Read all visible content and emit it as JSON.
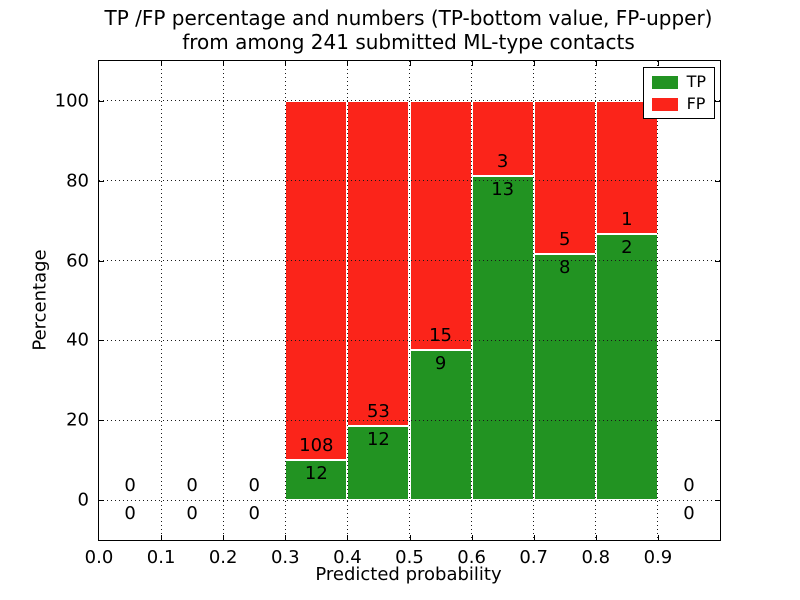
{
  "figure": {
    "title_line1": "TP /FP percentage and numbers (TP-bottom value, FP-upper)",
    "title_line2": "from among 241 submitted ML-type contacts"
  },
  "chart_data": {
    "type": "bar",
    "stacked": true,
    "title": "TP /FP percentage and numbers (TP-bottom value, FP-upper) from among 241 submitted ML-type contacts",
    "xlabel": "Predicted probability",
    "ylabel": "Percentage",
    "xlim": [
      0.0,
      1.0
    ],
    "ylim": [
      -10,
      110
    ],
    "grid": "dotted, drawn above bars",
    "total_contacts": 241,
    "xticks": {
      "values": [
        0.0,
        0.1,
        0.2,
        0.3,
        0.4,
        0.5,
        0.6,
        0.7,
        0.8,
        0.9
      ],
      "labels": [
        "0.0",
        "0.1",
        "0.2",
        "0.3",
        "0.4",
        "0.5",
        "0.6",
        "0.7",
        "0.8",
        "0.9"
      ]
    },
    "yticks": {
      "values": [
        0,
        20,
        40,
        60,
        80,
        100
      ],
      "labels": [
        "0",
        "20",
        "40",
        "60",
        "80",
        "100"
      ]
    },
    "colors": {
      "tp": "#229322",
      "fp": "#fb241a"
    },
    "legend": {
      "position": "upper right",
      "entries": [
        {
          "label": "TP",
          "color": "#229322"
        },
        {
          "label": "FP",
          "color": "#fb241a"
        }
      ]
    },
    "bins": [
      {
        "x0": 0.0,
        "x1": 0.1,
        "tp_count": 0,
        "fp_count": 0,
        "tp_pct": 0,
        "fp_pct": 0
      },
      {
        "x0": 0.1,
        "x1": 0.2,
        "tp_count": 0,
        "fp_count": 0,
        "tp_pct": 0,
        "fp_pct": 0
      },
      {
        "x0": 0.2,
        "x1": 0.3,
        "tp_count": 0,
        "fp_count": 0,
        "tp_pct": 0,
        "fp_pct": 0
      },
      {
        "x0": 0.3,
        "x1": 0.4,
        "tp_count": 12,
        "fp_count": 108,
        "tp_pct": 10.0,
        "fp_pct": 90.0
      },
      {
        "x0": 0.4,
        "x1": 0.5,
        "tp_count": 12,
        "fp_count": 53,
        "tp_pct": 18.46,
        "fp_pct": 81.54
      },
      {
        "x0": 0.5,
        "x1": 0.6,
        "tp_count": 9,
        "fp_count": 15,
        "tp_pct": 37.5,
        "fp_pct": 62.5
      },
      {
        "x0": 0.6,
        "x1": 0.7,
        "tp_count": 13,
        "fp_count": 3,
        "tp_pct": 81.25,
        "fp_pct": 18.75
      },
      {
        "x0": 0.7,
        "x1": 0.8,
        "tp_count": 8,
        "fp_count": 5,
        "tp_pct": 61.54,
        "fp_pct": 38.46
      },
      {
        "x0": 0.8,
        "x1": 0.9,
        "tp_count": 2,
        "fp_count": 1,
        "tp_pct": 66.67,
        "fp_pct": 33.33
      },
      {
        "x0": 0.9,
        "x1": 1.0,
        "tp_count": 0,
        "fp_count": 0,
        "tp_pct": 0,
        "fp_pct": 0
      }
    ]
  }
}
